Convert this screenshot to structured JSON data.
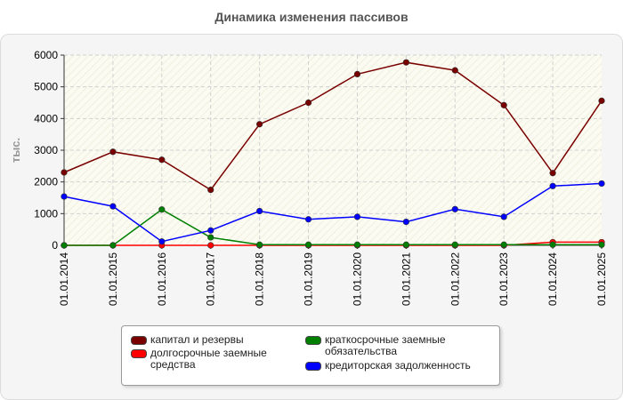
{
  "chart_data": {
    "type": "line",
    "title": "Динамика изменения пассивов",
    "ylabel": "тыс.",
    "xlabel": "",
    "ylim": [
      0,
      6000
    ],
    "yticks": [
      0,
      1000,
      2000,
      3000,
      4000,
      5000,
      6000
    ],
    "grid": true,
    "legend_position": "bottom",
    "categories": [
      "01.01.2014",
      "01.01.2015",
      "01.01.2016",
      "01.01.2017",
      "01.01.2018",
      "01.01.2019",
      "01.01.2020",
      "01.01.2021",
      "01.01.2022",
      "01.01.2023",
      "01.01.2024",
      "01.01.2025"
    ],
    "series": [
      {
        "name": "капитал и резервы",
        "color": "#7a0000",
        "values": [
          2300,
          2950,
          2700,
          1750,
          3820,
          4500,
          5400,
          5770,
          5520,
          4420,
          2280,
          4560
        ]
      },
      {
        "name": "долгосрочные заемные средства",
        "color": "#ff0000",
        "values": [
          0,
          0,
          0,
          0,
          0,
          0,
          0,
          0,
          0,
          0,
          100,
          100
        ]
      },
      {
        "name": "краткосрочные заемные обязательства",
        "color": "#008000",
        "values": [
          0,
          0,
          1130,
          250,
          20,
          20,
          20,
          20,
          20,
          20,
          20,
          20
        ]
      },
      {
        "name": "кредиторская задолженность",
        "color": "#0000ff",
        "values": [
          1540,
          1230,
          120,
          470,
          1080,
          820,
          900,
          740,
          1140,
          900,
          1870,
          1950
        ]
      }
    ]
  },
  "legend": {
    "labels": [
      "капитал и резервы",
      "долгосрочные заемные\nсредства",
      "краткосрочные заемные\nобязательства",
      "кредиторская задолженность"
    ]
  }
}
